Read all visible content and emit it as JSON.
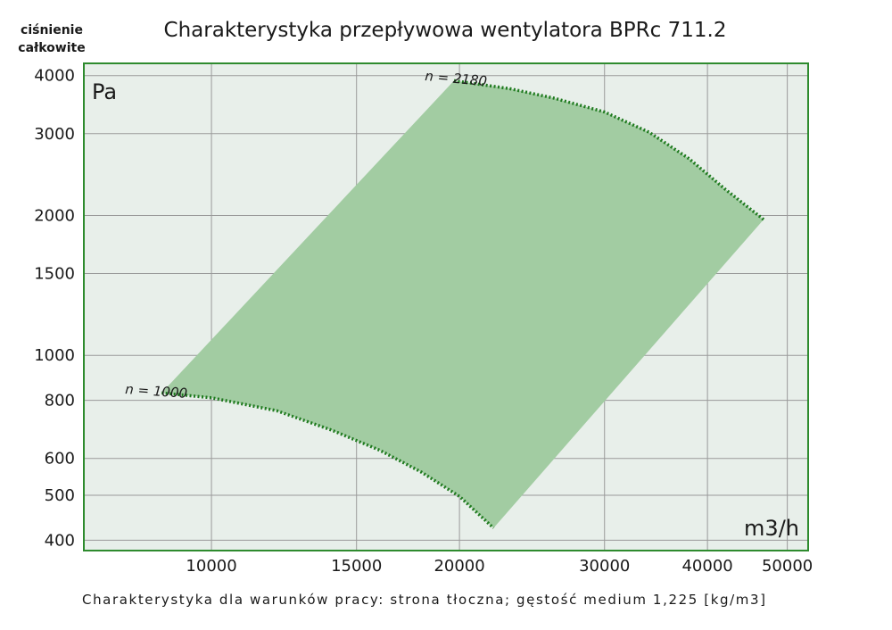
{
  "chart_data": {
    "type": "area",
    "title": "Charakterystyka przepływowa wentylatora BPRc 711.2",
    "ylabel_lines": [
      "ciśnienie",
      "całkowite"
    ],
    "y_unit": "Pa",
    "x_unit": "m3/h",
    "footnote": "Charakterystyka dla warunków pracy: strona tłoczna; gęstość medium 1,225 [kg/m3]",
    "x_scale": "log",
    "y_scale": "log",
    "xlim": [
      7000,
      53000
    ],
    "ylim": [
      380,
      4250
    ],
    "x_ticks": [
      10000,
      15000,
      20000,
      30000,
      40000,
      50000
    ],
    "x_tick_labels": [
      "10000",
      "15000",
      "20000",
      "30000",
      "40000",
      "50000"
    ],
    "y_ticks": [
      400,
      500,
      600,
      800,
      1000,
      1500,
      2000,
      3000,
      4000
    ],
    "y_tick_labels": [
      "400",
      "500",
      "600",
      "800",
      "1000",
      "1500",
      "2000",
      "3000",
      "4000"
    ],
    "grid": true,
    "series": [
      {
        "name": "n = 2180",
        "points": [
          [
            19700,
            3900
          ],
          [
            23000,
            3750
          ],
          [
            26000,
            3580
          ],
          [
            30000,
            3340
          ],
          [
            34000,
            3020
          ],
          [
            38000,
            2650
          ],
          [
            42000,
            2280
          ],
          [
            46800,
            1960
          ]
        ]
      },
      {
        "name": "n = 1000",
        "points": [
          [
            8700,
            830
          ],
          [
            10000,
            810
          ],
          [
            12000,
            760
          ],
          [
            14000,
            690
          ],
          [
            16000,
            625
          ],
          [
            18000,
            560
          ],
          [
            20000,
            497
          ],
          [
            22000,
            425
          ]
        ]
      }
    ],
    "operating_area": [
      [
        8700,
        830
      ],
      [
        19700,
        3900
      ],
      [
        23000,
        3750
      ],
      [
        26000,
        3580
      ],
      [
        30000,
        3340
      ],
      [
        34000,
        3020
      ],
      [
        38000,
        2650
      ],
      [
        42000,
        2280
      ],
      [
        46800,
        1960
      ],
      [
        22000,
        425
      ],
      [
        20000,
        497
      ],
      [
        18000,
        560
      ],
      [
        16000,
        625
      ],
      [
        14000,
        690
      ],
      [
        12000,
        760
      ],
      [
        10000,
        810
      ]
    ],
    "colors": {
      "plot_background": "#e8efea",
      "frame": "#2e8b2e",
      "grid": "#9a9a9a",
      "area_fill": "#a2cca2",
      "curve": "#1e7a1e"
    }
  }
}
